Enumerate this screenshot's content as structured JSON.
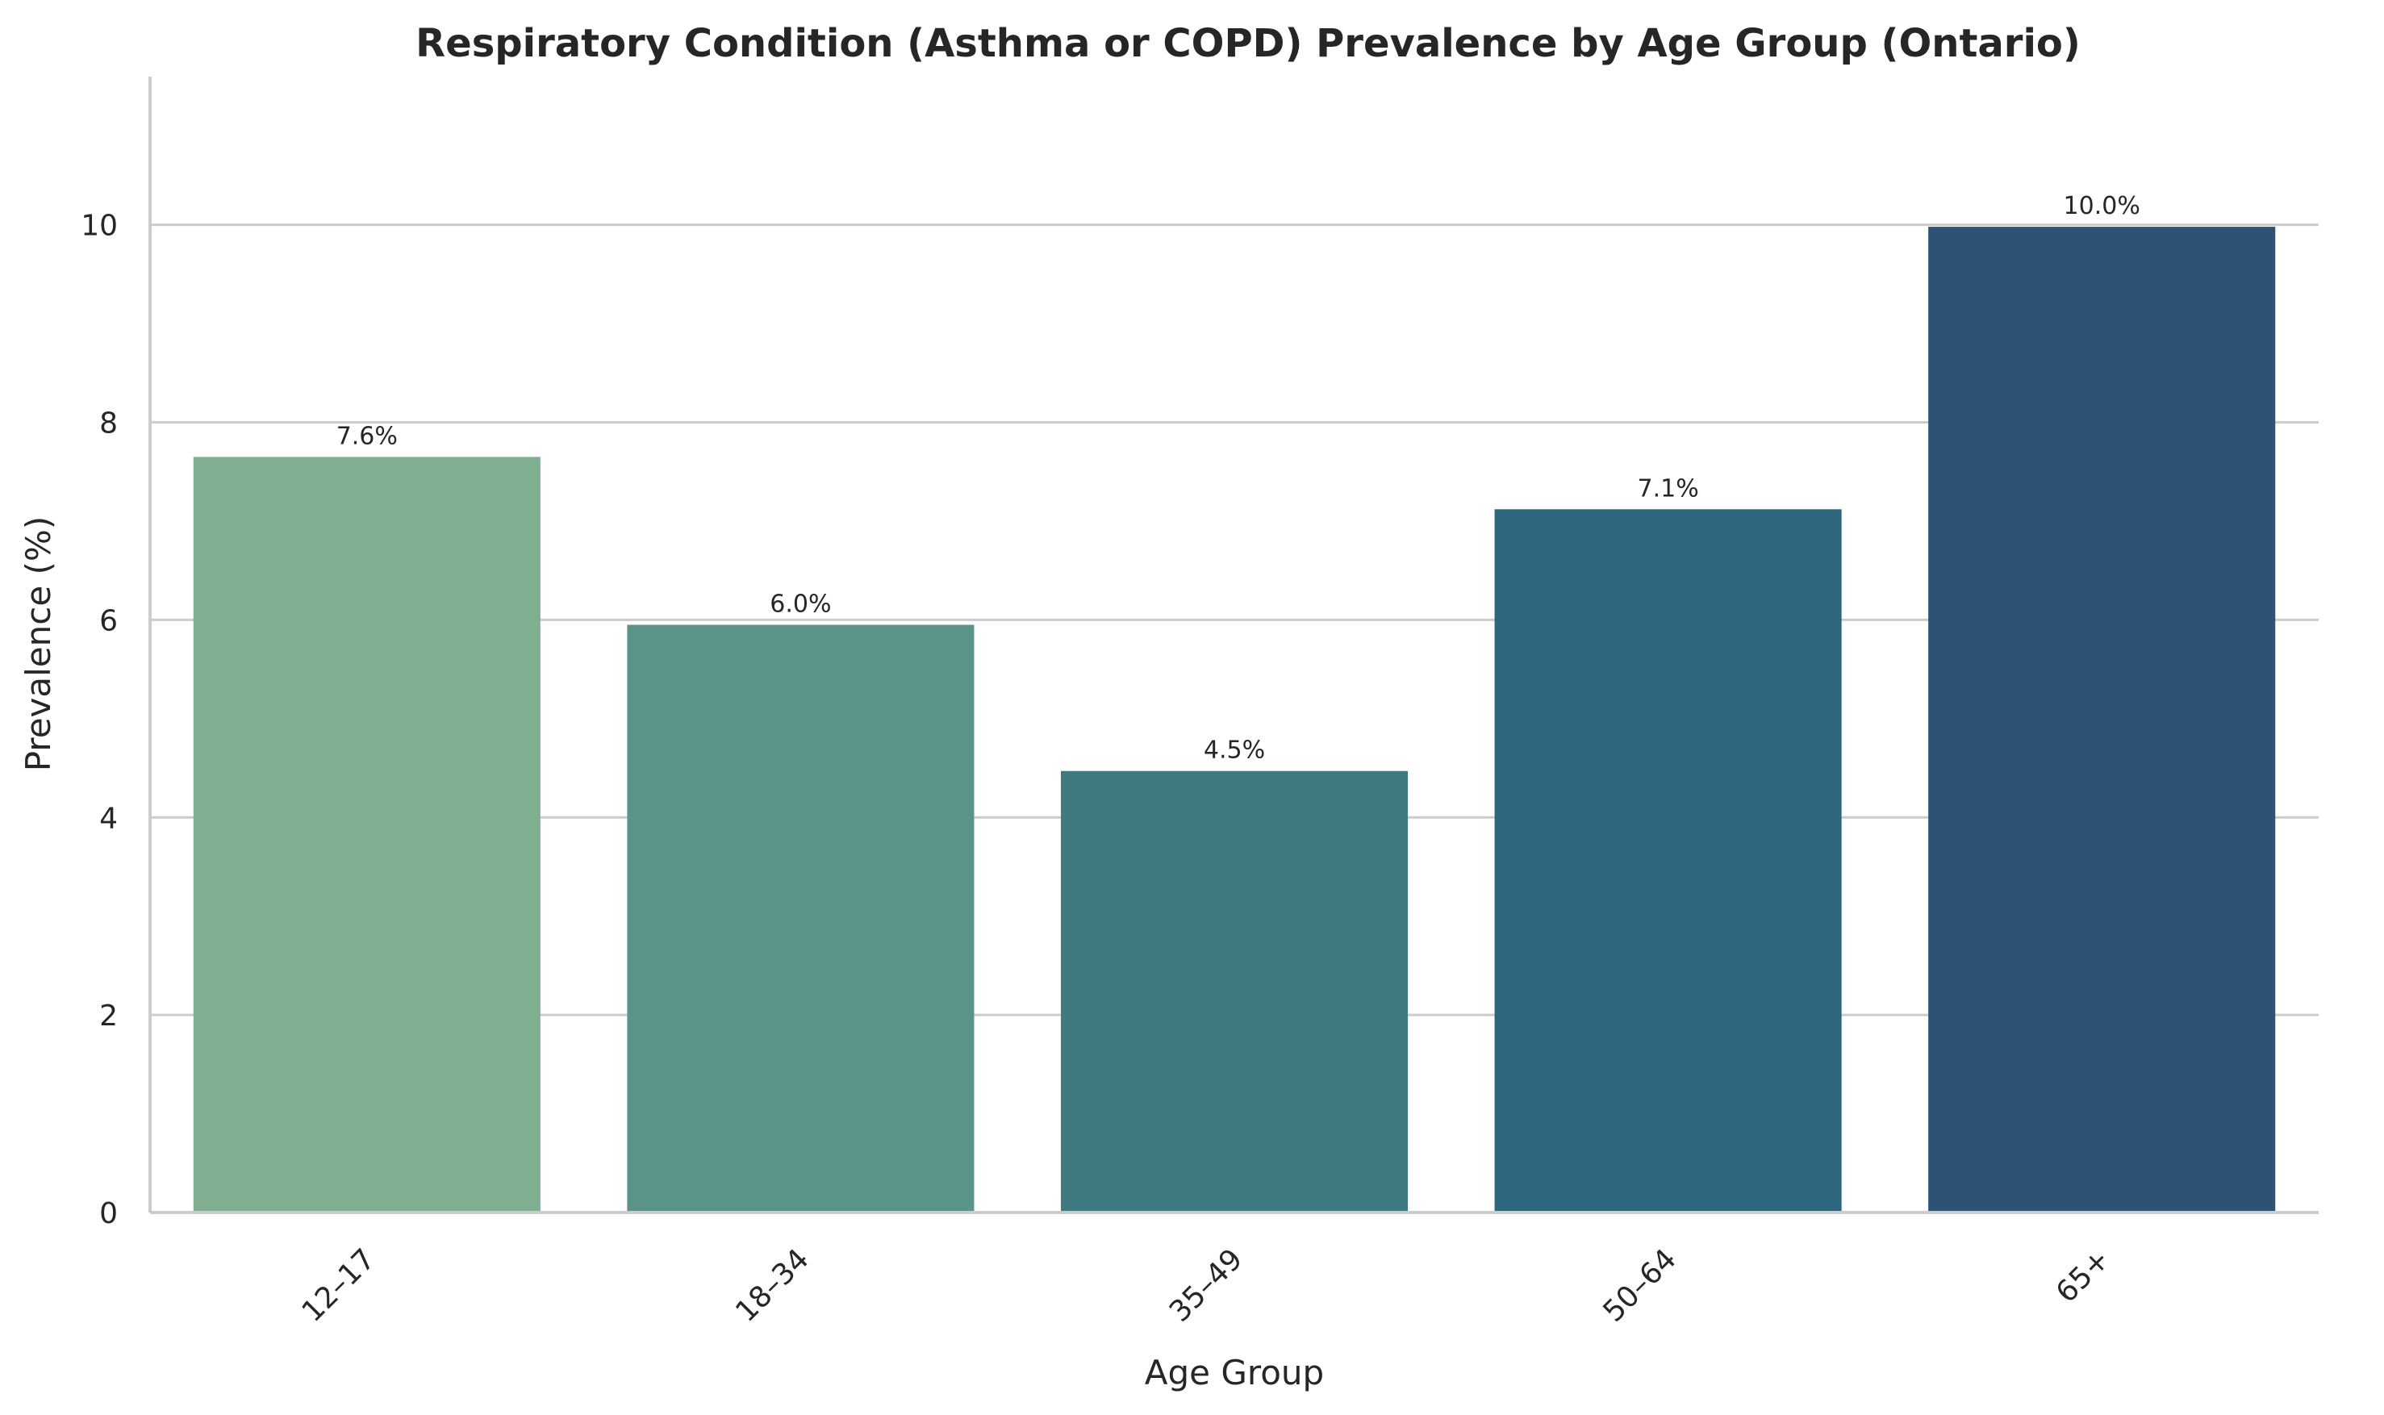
{
  "chart_data": {
    "type": "bar",
    "title": "Respiratory Condition (Asthma or COPD) Prevalence by Age Group (Ontario)",
    "xlabel": "Age Group",
    "ylabel": "Prevalence (%)",
    "categories": [
      "12–17",
      "18–34",
      "35–49",
      "50–64",
      "65+"
    ],
    "values": [
      7.65,
      5.95,
      4.47,
      7.12,
      9.98
    ],
    "data_labels": [
      "7.6%",
      "6.0%",
      "4.5%",
      "7.1%",
      "10.0%"
    ],
    "colors": [
      "#7fae91",
      "#5b9388",
      "#3f7a80",
      "#2e677d",
      "#2e5274"
    ],
    "yticks": [
      0,
      2,
      4,
      6,
      8,
      10
    ],
    "ylim": [
      0,
      11.5
    ],
    "grid": "horizontal",
    "legend": "none"
  }
}
